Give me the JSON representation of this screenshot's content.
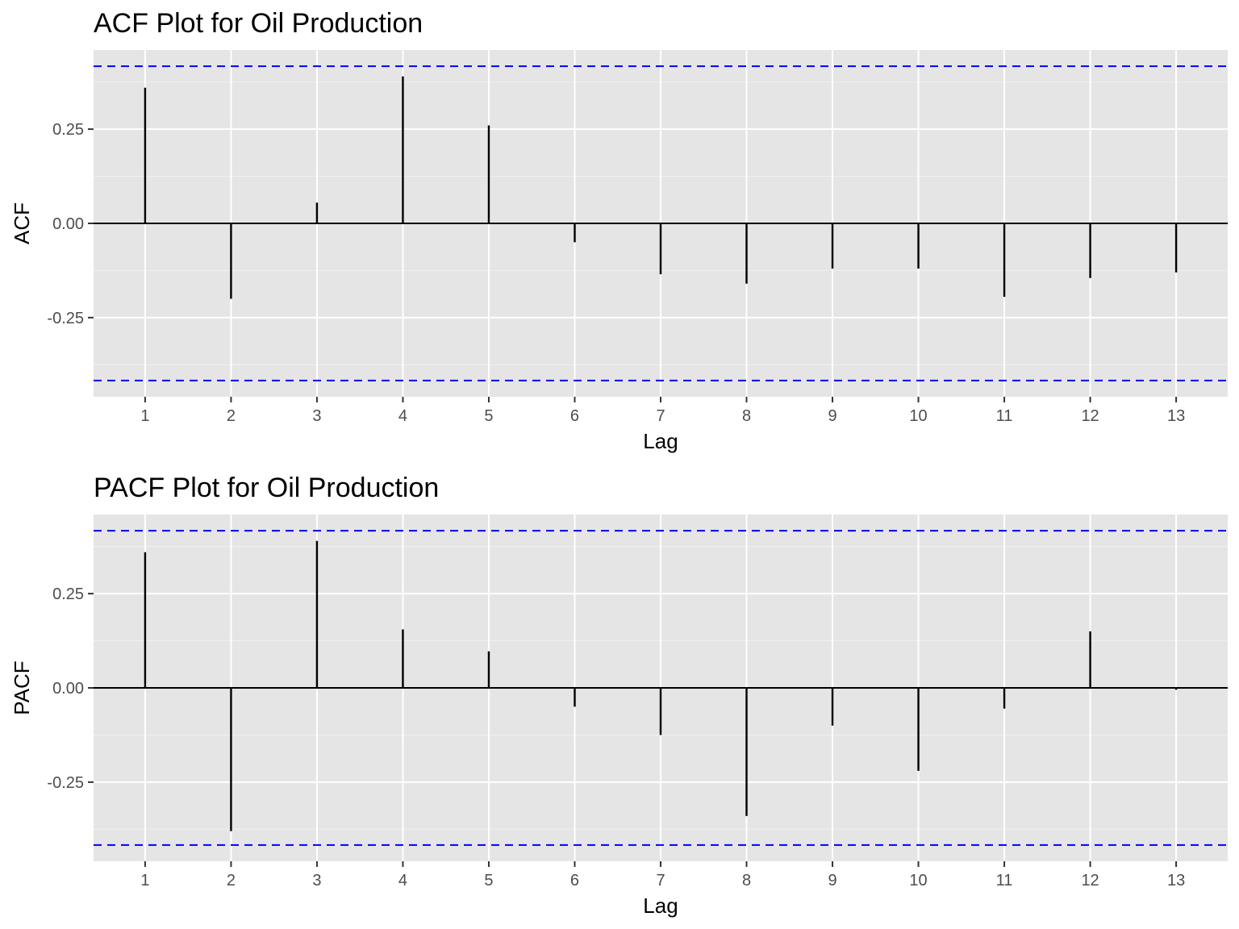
{
  "colors": {
    "panel_background": "#e5e5e5",
    "grid_major": "#ffffff",
    "grid_minor": "#f2f2f2",
    "bars": "#000000",
    "confidence_band": "#0000ff",
    "tick_text": "#4d4d4d"
  },
  "chart_data": [
    {
      "type": "bar",
      "title": "ACF Plot for Oil Production",
      "xlabel": "Lag",
      "ylabel": "ACF",
      "categories": [
        1,
        2,
        3,
        4,
        5,
        6,
        7,
        8,
        9,
        10,
        11,
        12,
        13
      ],
      "values": [
        0.36,
        -0.2,
        0.055,
        0.39,
        0.26,
        -0.05,
        -0.135,
        -0.16,
        -0.12,
        -0.12,
        -0.195,
        -0.145,
        -0.13
      ],
      "ytick_values": [
        -0.25,
        0,
        0.25
      ],
      "ytick_labels": [
        "-0.25",
        "0.00",
        "0.25"
      ],
      "xtick_labels": [
        "1",
        "2",
        "3",
        "4",
        "5",
        "6",
        "7",
        "8",
        "9",
        "10",
        "11",
        "12",
        "13"
      ],
      "confidence_bounds": [
        -0.417,
        0.417
      ],
      "ylim": [
        -0.46,
        0.46
      ],
      "xlim": [
        0.4,
        13.6
      ],
      "grid": true
    },
    {
      "type": "bar",
      "title": "PACF Plot for Oil Production",
      "xlabel": "Lag",
      "ylabel": "PACF",
      "categories": [
        1,
        2,
        3,
        4,
        5,
        6,
        7,
        8,
        9,
        10,
        11,
        12,
        13
      ],
      "values": [
        0.36,
        -0.38,
        0.39,
        0.155,
        0.097,
        -0.05,
        -0.125,
        -0.34,
        -0.1,
        -0.22,
        -0.055,
        0.15,
        -0.005
      ],
      "ytick_values": [
        -0.25,
        0,
        0.25
      ],
      "ytick_labels": [
        "-0.25",
        "0.00",
        "0.25"
      ],
      "xtick_labels": [
        "1",
        "2",
        "3",
        "4",
        "5",
        "6",
        "7",
        "8",
        "9",
        "10",
        "11",
        "12",
        "13"
      ],
      "confidence_bounds": [
        -0.417,
        0.417
      ],
      "ylim": [
        -0.46,
        0.46
      ],
      "xlim": [
        0.4,
        13.6
      ],
      "grid": true
    }
  ]
}
